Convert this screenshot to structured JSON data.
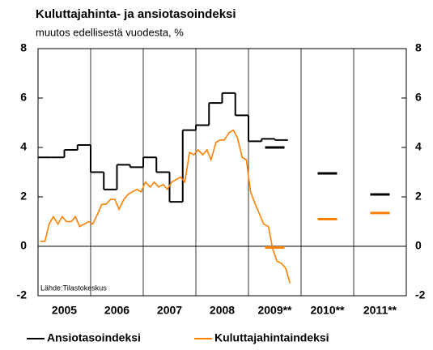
{
  "chart_data": {
    "type": "line",
    "title": "Kuluttajahinta- ja ansiotasoindeksi",
    "subtitle": "muutos edellisestä vuodesta, %",
    "source": "Lähde:Tilastokeskus",
    "xlim": [
      2005,
      2012
    ],
    "xticks": [
      2006,
      2007,
      2008,
      2009,
      2010,
      2011
    ],
    "categories": [
      "2005",
      "2006",
      "2007",
      "2008",
      "2009**",
      "2010**",
      "2011**"
    ],
    "category_x": [
      2005.5,
      2006.5,
      2007.5,
      2008.5,
      2009.5,
      2010.5,
      2011.5
    ],
    "ylim": [
      -2,
      8
    ],
    "yticks": [
      -2,
      0,
      2,
      4,
      6,
      8
    ],
    "series": [
      {
        "name": "Ansiotasoindeksi",
        "color": "#000000",
        "step": 0.25,
        "x": [
          2005,
          2005.25,
          2005.5,
          2005.75,
          2006,
          2006.25,
          2006.5,
          2006.75,
          2007,
          2007.25,
          2007.5,
          2007.75,
          2008,
          2008.25,
          2008.5,
          2008.75,
          2009,
          2009.25,
          2009.5
        ],
        "values": [
          3.6,
          3.6,
          3.9,
          4.1,
          3.0,
          2.3,
          3.3,
          3.2,
          3.6,
          3.0,
          1.8,
          4.7,
          4.9,
          5.8,
          6.2,
          5.3,
          4.25,
          4.35,
          4.3
        ],
        "forecast_x": [
          2009.5,
          2010.5,
          2011.5
        ],
        "forecast": [
          4.0,
          2.95,
          2.1
        ]
      },
      {
        "name": "Kuluttajahintaindeksi",
        "color": "#ff7f00",
        "x": [
          2005.04,
          2005.13,
          2005.21,
          2005.29,
          2005.38,
          2005.46,
          2005.54,
          2005.63,
          2005.71,
          2005.79,
          2005.88,
          2005.96,
          2006.04,
          2006.13,
          2006.21,
          2006.29,
          2006.38,
          2006.46,
          2006.54,
          2006.63,
          2006.71,
          2006.79,
          2006.88,
          2006.96,
          2007.04,
          2007.13,
          2007.21,
          2007.29,
          2007.38,
          2007.46,
          2007.54,
          2007.63,
          2007.71,
          2007.79,
          2007.88,
          2007.96,
          2008.04,
          2008.13,
          2008.21,
          2008.29,
          2008.38,
          2008.46,
          2008.54,
          2008.63,
          2008.71,
          2008.79,
          2008.88,
          2008.96,
          2009.04,
          2009.13,
          2009.21,
          2009.29,
          2009.38,
          2009.46,
          2009.54,
          2009.63,
          2009.71,
          2009.79
        ],
        "values": [
          0.2,
          0.2,
          0.9,
          1.2,
          0.9,
          1.2,
          1.0,
          1.0,
          1.2,
          0.8,
          0.9,
          1.0,
          0.9,
          1.3,
          1.7,
          1.7,
          1.9,
          1.9,
          1.5,
          1.9,
          2.1,
          2.2,
          2.3,
          2.2,
          2.6,
          2.4,
          2.6,
          2.4,
          2.5,
          2.3,
          2.6,
          2.7,
          2.8,
          2.6,
          3.8,
          3.7,
          3.9,
          3.7,
          3.9,
          3.5,
          4.2,
          4.3,
          4.3,
          4.6,
          4.7,
          4.4,
          3.6,
          3.5,
          2.2,
          1.7,
          1.3,
          0.9,
          0.8,
          -0.1,
          -0.6,
          -0.7,
          -0.9,
          -1.5
        ],
        "forecast_x": [
          2009.5,
          2010.5,
          2011.5
        ],
        "forecast": [
          -0.05,
          1.1,
          1.35
        ]
      }
    ]
  }
}
